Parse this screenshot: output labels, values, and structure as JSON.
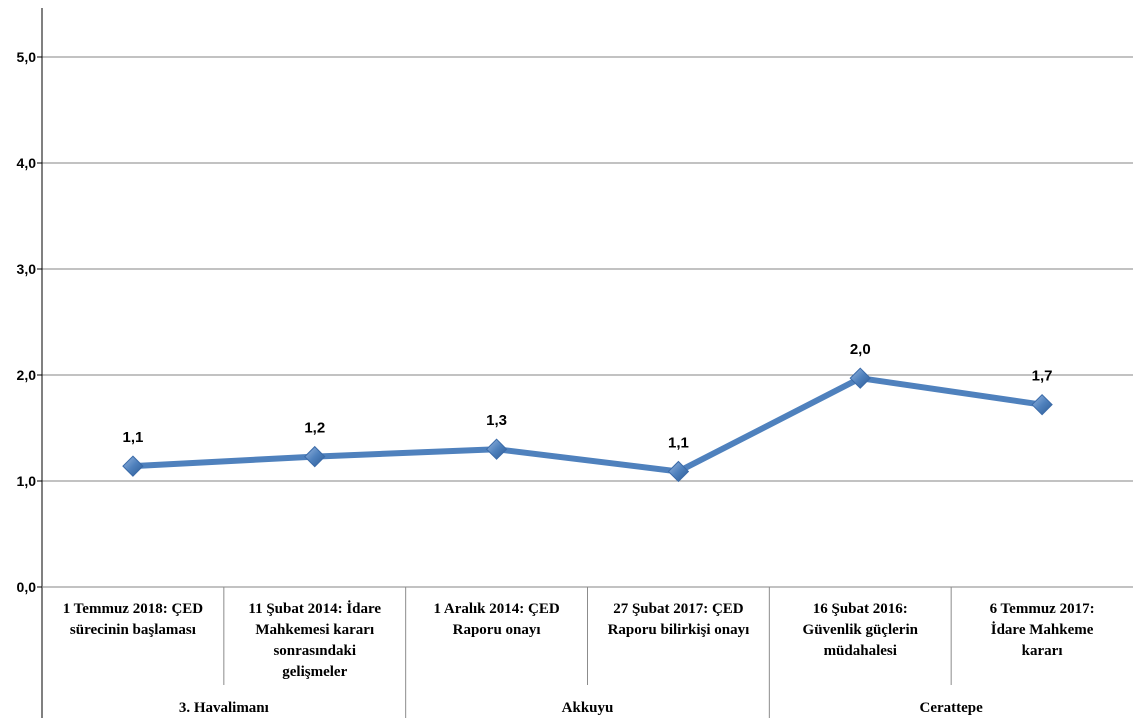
{
  "chart_data": {
    "type": "line",
    "ylim": [
      0,
      5
    ],
    "yticks": [
      "0,0",
      "1,0",
      "2,0",
      "3,0",
      "4,0",
      "5,0"
    ],
    "ytick_values": [
      0,
      1,
      2,
      3,
      4,
      5
    ],
    "grid": true,
    "categories": [
      [
        "1 Temmuz 2018: ÇED",
        "sürecinin başlaması"
      ],
      [
        "11 Şubat 2014: İdare",
        "Mahkemesi kararı",
        "sonrasındaki",
        "gelişmeler"
      ],
      [
        "1 Aralık 2014: ÇED",
        "Raporu onayı"
      ],
      [
        "27 Şubat 2017: ÇED",
        "Raporu bilirkişi onayı"
      ],
      [
        "16 Şubat 2016:",
        "Güvenlik güçlerin",
        "müdahalesi"
      ],
      [
        "6 Temmuz 2017:",
        "İdare Mahkeme",
        "kararı"
      ]
    ],
    "groups": [
      {
        "name": "3. Havalimanı",
        "span": 2
      },
      {
        "name": "Akkuyu",
        "span": 2
      },
      {
        "name": "Cerattepe",
        "span": 2
      }
    ],
    "series": [
      {
        "values": [
          1.14,
          1.23,
          1.3,
          1.09,
          1.97,
          1.72
        ],
        "labels": [
          "1,1",
          "1,2",
          "1,3",
          "1,1",
          "2,0",
          "1,7"
        ],
        "color": "#4f81bd",
        "marker_color": "#4f81bd"
      }
    ],
    "axis_color": "#000000",
    "grid_color": "#868686"
  }
}
